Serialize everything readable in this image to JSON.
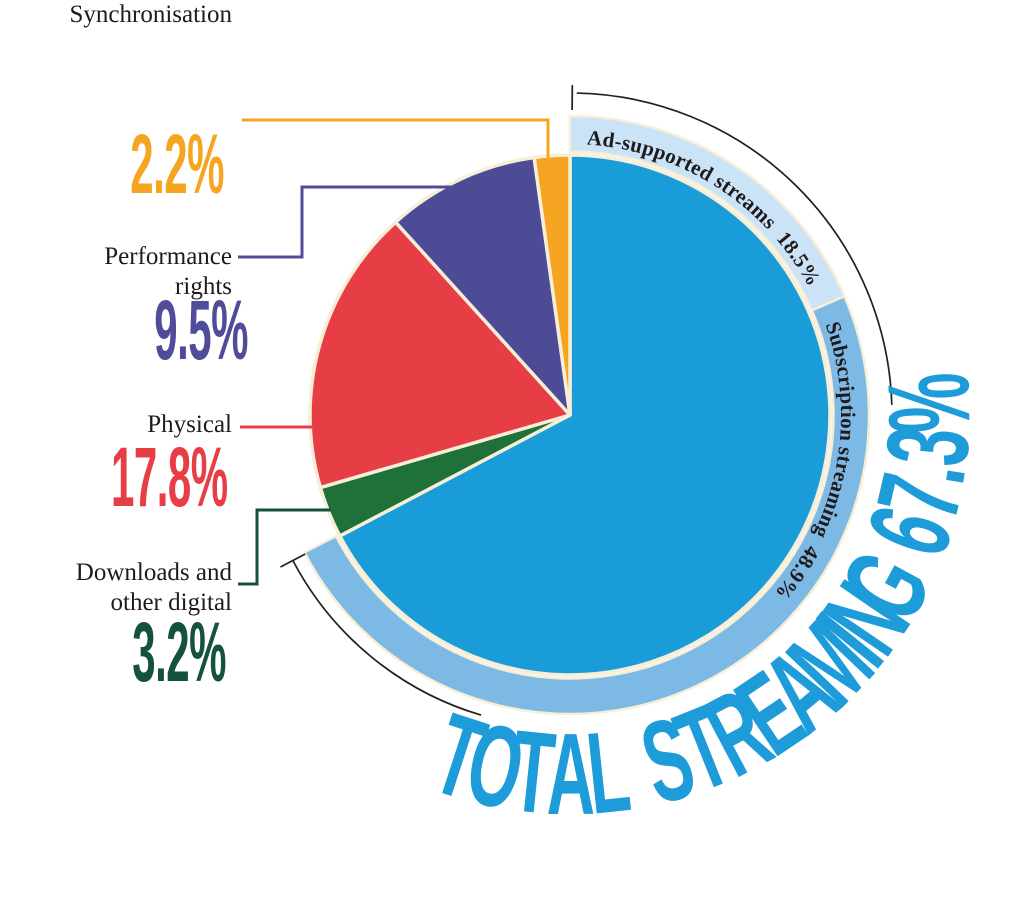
{
  "chart_data": {
    "type": "pie",
    "direction": "clockwise",
    "start_angle_deg": 0,
    "unit": "%",
    "slices": [
      {
        "label": "Total streaming",
        "value": 67.3,
        "color": "#1A9CD8"
      },
      {
        "label": "Downloads and other digital",
        "value": 3.2,
        "color": "#1F7039"
      },
      {
        "label": "Physical",
        "value": 17.8,
        "color": "#E73E46"
      },
      {
        "label": "Performance rights",
        "value": 9.5,
        "color": "#4D4B96"
      },
      {
        "label": "Synchronisation",
        "value": 2.2,
        "color": "#F6A522"
      }
    ],
    "streaming_breakdown": [
      {
        "label": "Ad-supported streams",
        "value": 18.5,
        "color": "#CBE3F6"
      },
      {
        "label": "Subscription streaming",
        "value": 48.9,
        "color": "#7CB9E4"
      }
    ],
    "slice_stroke_color": "#F7EED8",
    "bracket_color": "#231F20",
    "legend_position": "left-callouts"
  },
  "ring_labels": {
    "ad": "Ad-supported streams  18.5%",
    "sub": "Subscription streaming  48.9%"
  },
  "total_label": "TOTAL STREAMING 67.3%",
  "total_color": "#1E9CD9",
  "callouts": {
    "synchronisation": {
      "label": "Synchronisation",
      "value": "2.2%",
      "color": "#F6A522"
    },
    "performance": {
      "label_line1": "Performance",
      "label_line2": "rights",
      "value": "9.5%",
      "color": "#4F4C99"
    },
    "physical": {
      "label": "Physical",
      "value": "17.8%",
      "color": "#E73E46"
    },
    "downloads": {
      "label_line1": "Downloads and",
      "label_line2": "other digital",
      "value": "3.2%",
      "color": "#14523A"
    }
  }
}
